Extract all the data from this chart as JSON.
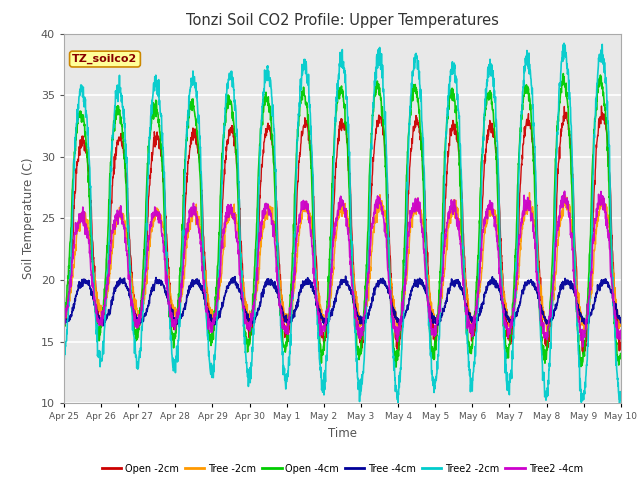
{
  "title": "Tonzi Soil CO2 Profile: Upper Temperatures",
  "xlabel": "Time",
  "ylabel": "Soil Temperature (C)",
  "ylim": [
    10,
    40
  ],
  "label_box_text": "TZ_soilco2",
  "background_color": "#e8e8e8",
  "tick_labels": [
    "Apr 25",
    "Apr 26",
    "Apr 27",
    "Apr 28",
    "Apr 29",
    "Apr 30",
    "May 1",
    "May 2",
    "May 3",
    "May 4",
    "May 5",
    "May 6",
    "May 7",
    "May 8",
    "May 9",
    "May 10"
  ],
  "series_colors": [
    "#cc0000",
    "#ff9900",
    "#00cc00",
    "#000099",
    "#00cccc",
    "#cc00cc"
  ],
  "series_labels": [
    "Open -2cm",
    "Tree -2cm",
    "Open -4cm",
    "Tree -4cm",
    "Tree2 -2cm",
    "Tree2 -4cm"
  ],
  "yticks": [
    10,
    15,
    20,
    25,
    30,
    35,
    40
  ],
  "num_days": 15,
  "pts_per_day": 144,
  "fig_width": 6.4,
  "fig_height": 4.8,
  "dpi": 100
}
